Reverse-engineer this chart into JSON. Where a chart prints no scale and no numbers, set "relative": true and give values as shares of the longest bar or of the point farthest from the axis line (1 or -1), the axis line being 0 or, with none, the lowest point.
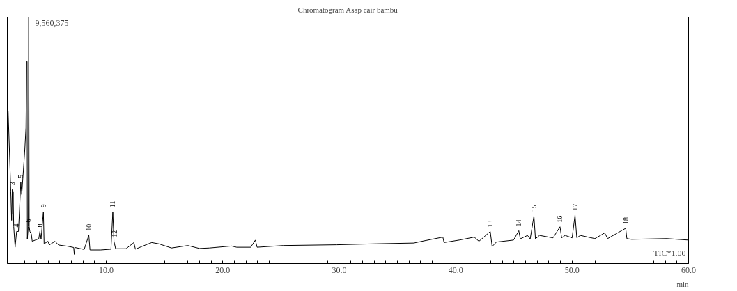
{
  "chart_data": {
    "type": "line",
    "title": "Chromatogram Asap cair bambu",
    "xlabel": "min",
    "relative": true,
    "color": "#000000",
    "grid": false,
    "marker": "none",
    "line_style": "solid",
    "tick_labels": "x",
    "xlim": [
      1.5,
      60
    ],
    "xticks": [
      {
        "value": 2,
        "label": null
      },
      {
        "value": 3,
        "label": null
      },
      {
        "value": 4,
        "label": null
      },
      {
        "value": 5,
        "label": null
      },
      {
        "value": 6,
        "label": null
      },
      {
        "value": 7,
        "label": null
      },
      {
        "value": 8,
        "label": null
      },
      {
        "value": 9,
        "label": null
      },
      {
        "value": 10,
        "label": "10.0"
      },
      {
        "value": 11,
        "label": null
      },
      {
        "value": 12,
        "label": null
      },
      {
        "value": 13,
        "label": null
      },
      {
        "value": 14,
        "label": null
      },
      {
        "value": 15,
        "label": null
      },
      {
        "value": 16,
        "label": null
      },
      {
        "value": 17,
        "label": null
      },
      {
        "value": 18,
        "label": null
      },
      {
        "value": 19,
        "label": null
      },
      {
        "value": 20,
        "label": "20.0"
      },
      {
        "value": 21,
        "label": null
      },
      {
        "value": 22,
        "label": null
      },
      {
        "value": 23,
        "label": null
      },
      {
        "value": 24,
        "label": null
      },
      {
        "value": 25,
        "label": null
      },
      {
        "value": 26,
        "label": null
      },
      {
        "value": 27,
        "label": null
      },
      {
        "value": 28,
        "label": null
      },
      {
        "value": 29,
        "label": null
      },
      {
        "value": 30,
        "label": "30.0"
      },
      {
        "value": 31,
        "label": null
      },
      {
        "value": 32,
        "label": null
      },
      {
        "value": 33,
        "label": null
      },
      {
        "value": 34,
        "label": null
      },
      {
        "value": 35,
        "label": null
      },
      {
        "value": 36,
        "label": null
      },
      {
        "value": 37,
        "label": null
      },
      {
        "value": 38,
        "label": null
      },
      {
        "value": 39,
        "label": null
      },
      {
        "value": 40,
        "label": "40.0"
      },
      {
        "value": 41,
        "label": null
      },
      {
        "value": 42,
        "label": null
      },
      {
        "value": 43,
        "label": null
      },
      {
        "value": 44,
        "label": null
      },
      {
        "value": 45,
        "label": null
      },
      {
        "value": 46,
        "label": null
      },
      {
        "value": 47,
        "label": null
      },
      {
        "value": 48,
        "label": null
      },
      {
        "value": 49,
        "label": null
      },
      {
        "value": 50,
        "label": "50.0"
      },
      {
        "value": 51,
        "label": null
      },
      {
        "value": 52,
        "label": null
      },
      {
        "value": 53,
        "label": null
      },
      {
        "value": 54,
        "label": null
      },
      {
        "value": 55,
        "label": null
      },
      {
        "value": 56,
        "label": null
      },
      {
        "value": 57,
        "label": null
      },
      {
        "value": 58,
        "label": null
      },
      {
        "value": 59,
        "label": null
      },
      {
        "value": 60,
        "label": "60.0"
      }
    ],
    "x": [
      1.57,
      1.8,
      1.87,
      1.93,
      1.97,
      2.0,
      2.05,
      2.17,
      2.3,
      2.46,
      2.66,
      2.74,
      3.0,
      3.1,
      3.16,
      3.2,
      3.22,
      3.3,
      3.34,
      3.38,
      3.44,
      3.56,
      3.64,
      3.9,
      4.2,
      4.3,
      4.4,
      4.6,
      4.66,
      5.0,
      5.1,
      5.6,
      5.9,
      6.7,
      7.2,
      7.25,
      7.3,
      8.1,
      8.5,
      8.6,
      9.5,
      10.4,
      10.56,
      10.66,
      10.8,
      11.7,
      12.37,
      12.5,
      13.2,
      13.9,
      14.5,
      15.6,
      17.0,
      18.0,
      18.85,
      20.75,
      21.2,
      22.4,
      22.8,
      22.95,
      25.2,
      29.8,
      33.2,
      36.4,
      37.3,
      38.9,
      39.0,
      40.3,
      41.6,
      42.0,
      42.97,
      43.13,
      43.5,
      44.97,
      45.42,
      45.55,
      46.17,
      46.4,
      46.72,
      46.85,
      47.2,
      48.36,
      48.96,
      49.1,
      49.4,
      50.0,
      50.25,
      50.4,
      50.7,
      51.95,
      52.8,
      53.05,
      54.6,
      54.7,
      55.1,
      58.13,
      60.0
    ],
    "values": [
      0.62,
      0.29,
      0.175,
      0.3,
      0.2,
      0.29,
      0.15,
      0.066,
      0.13,
      0.13,
      0.33,
      0.28,
      0.46,
      0.55,
      0.82,
      0.82,
      0.1,
      0.15,
      1.0,
      0.15,
      0.13,
      0.12,
      0.09,
      0.095,
      0.1,
      0.13,
      0.1,
      0.21,
      0.08,
      0.09,
      0.075,
      0.09,
      0.075,
      0.07,
      0.065,
      0.037,
      0.065,
      0.057,
      0.115,
      0.055,
      0.055,
      0.058,
      0.21,
      0.09,
      0.06,
      0.06,
      0.085,
      0.058,
      0.072,
      0.085,
      0.08,
      0.063,
      0.073,
      0.061,
      0.063,
      0.071,
      0.066,
      0.066,
      0.095,
      0.066,
      0.073,
      0.076,
      0.08,
      0.083,
      0.092,
      0.107,
      0.085,
      0.095,
      0.107,
      0.09,
      0.13,
      0.069,
      0.087,
      0.095,
      0.133,
      0.1,
      0.114,
      0.1,
      0.193,
      0.1,
      0.114,
      0.104,
      0.149,
      0.104,
      0.114,
      0.104,
      0.197,
      0.104,
      0.114,
      0.101,
      0.124,
      0.101,
      0.143,
      0.101,
      0.098,
      0.101,
      0.095
    ],
    "annotations": [
      "9,560,375",
      {
        "text": "TIC*1.00",
        "x": 60,
        "y": 0.095
      },
      {
        "text": "3",
        "x": 1.93,
        "y": 0.3
      },
      {
        "text": "4",
        "x": 2.3,
        "y": 0.13
      },
      {
        "text": "5",
        "x": 2.66,
        "y": 0.33
      },
      {
        "text": "6",
        "x": 3.3,
        "y": 0.15
      },
      {
        "text": "8",
        "x": 4.3,
        "y": 0.13
      },
      {
        "text": "9",
        "x": 4.6,
        "y": 0.21
      },
      {
        "text": "10",
        "x": 8.5,
        "y": 0.115
      },
      {
        "text": "11",
        "x": 10.56,
        "y": 0.21
      },
      {
        "text": "12",
        "x": 10.7,
        "y": 0.09
      },
      {
        "text": "13",
        "x": 42.97,
        "y": 0.13
      },
      {
        "text": "14",
        "x": 45.42,
        "y": 0.133
      },
      {
        "text": "15",
        "x": 46.72,
        "y": 0.193
      },
      {
        "text": "16",
        "x": 48.96,
        "y": 0.149
      },
      {
        "text": "17",
        "x": 50.25,
        "y": 0.197
      },
      {
        "text": "18",
        "x": 54.6,
        "y": 0.143
      }
    ]
  }
}
